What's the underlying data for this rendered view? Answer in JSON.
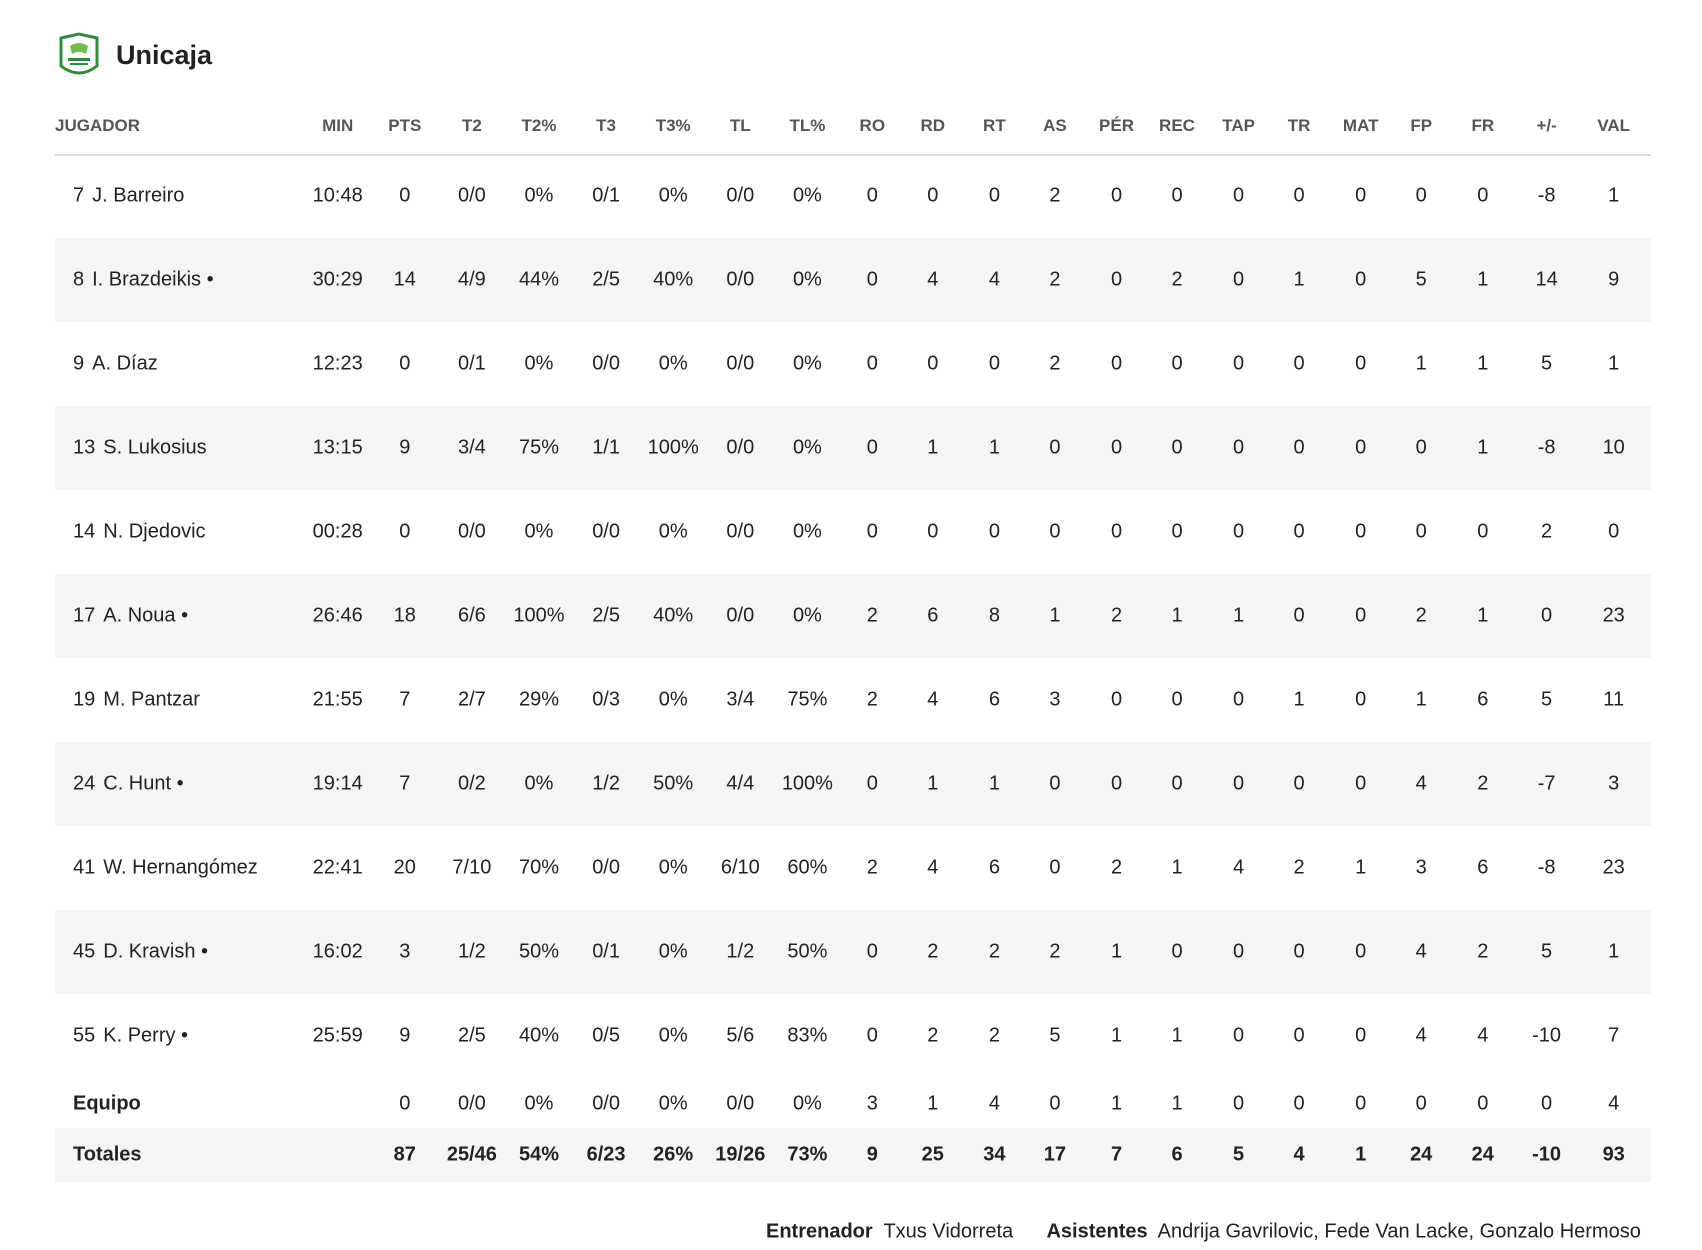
{
  "header": {
    "title": "Unicaja"
  },
  "table": {
    "columns": [
      "JUGADOR",
      "MIN",
      "PTS",
      "T2",
      "T2%",
      "T3",
      "T3%",
      "TL",
      "TL%",
      "RO",
      "RD",
      "RT",
      "AS",
      "PÉR",
      "REC",
      "TAP",
      "TR",
      "MAT",
      "FP",
      "FR",
      "+/-",
      "VAL"
    ],
    "rows": [
      {
        "number": "7",
        "name": "J. Barreiro",
        "stats": [
          "10:48",
          "0",
          "0/0",
          "0%",
          "0/1",
          "0%",
          "0/0",
          "0%",
          "0",
          "0",
          "0",
          "2",
          "0",
          "0",
          "0",
          "0",
          "0",
          "0",
          "0",
          "-8",
          "1"
        ]
      },
      {
        "number": "8",
        "name": "I. Brazdeikis •",
        "stats": [
          "30:29",
          "14",
          "4/9",
          "44%",
          "2/5",
          "40%",
          "0/0",
          "0%",
          "0",
          "4",
          "4",
          "2",
          "0",
          "2",
          "0",
          "1",
          "0",
          "5",
          "1",
          "14",
          "9"
        ]
      },
      {
        "number": "9",
        "name": "A. Díaz",
        "stats": [
          "12:23",
          "0",
          "0/1",
          "0%",
          "0/0",
          "0%",
          "0/0",
          "0%",
          "0",
          "0",
          "0",
          "2",
          "0",
          "0",
          "0",
          "0",
          "0",
          "1",
          "1",
          "5",
          "1"
        ]
      },
      {
        "number": "13",
        "name": "S. Lukosius",
        "stats": [
          "13:15",
          "9",
          "3/4",
          "75%",
          "1/1",
          "100%",
          "0/0",
          "0%",
          "0",
          "1",
          "1",
          "0",
          "0",
          "0",
          "0",
          "0",
          "0",
          "0",
          "1",
          "-8",
          "10"
        ]
      },
      {
        "number": "14",
        "name": "N. Djedovic",
        "stats": [
          "00:28",
          "0",
          "0/0",
          "0%",
          "0/0",
          "0%",
          "0/0",
          "0%",
          "0",
          "0",
          "0",
          "0",
          "0",
          "0",
          "0",
          "0",
          "0",
          "0",
          "0",
          "2",
          "0"
        ]
      },
      {
        "number": "17",
        "name": "A. Noua •",
        "stats": [
          "26:46",
          "18",
          "6/6",
          "100%",
          "2/5",
          "40%",
          "0/0",
          "0%",
          "2",
          "6",
          "8",
          "1",
          "2",
          "1",
          "1",
          "0",
          "0",
          "2",
          "1",
          "0",
          "23"
        ]
      },
      {
        "number": "19",
        "name": "M. Pantzar",
        "stats": [
          "21:55",
          "7",
          "2/7",
          "29%",
          "0/3",
          "0%",
          "3/4",
          "75%",
          "2",
          "4",
          "6",
          "3",
          "0",
          "0",
          "0",
          "1",
          "0",
          "1",
          "6",
          "5",
          "11"
        ]
      },
      {
        "number": "24",
        "name": "C. Hunt •",
        "stats": [
          "19:14",
          "7",
          "0/2",
          "0%",
          "1/2",
          "50%",
          "4/4",
          "100%",
          "0",
          "1",
          "1",
          "0",
          "0",
          "0",
          "0",
          "0",
          "0",
          "4",
          "2",
          "-7",
          "3"
        ]
      },
      {
        "number": "41",
        "name": "W. Hernangómez",
        "stats": [
          "22:41",
          "20",
          "7/10",
          "70%",
          "0/0",
          "0%",
          "6/10",
          "60%",
          "2",
          "4",
          "6",
          "0",
          "2",
          "1",
          "4",
          "2",
          "1",
          "3",
          "6",
          "-8",
          "23"
        ]
      },
      {
        "number": "45",
        "name": "D. Kravish •",
        "stats": [
          "16:02",
          "3",
          "1/2",
          "50%",
          "0/1",
          "0%",
          "1/2",
          "50%",
          "0",
          "2",
          "2",
          "2",
          "1",
          "0",
          "0",
          "0",
          "0",
          "4",
          "2",
          "5",
          "1"
        ]
      },
      {
        "number": "55",
        "name": "K. Perry •",
        "stats": [
          "25:59",
          "9",
          "2/5",
          "40%",
          "0/5",
          "0%",
          "5/6",
          "83%",
          "0",
          "2",
          "2",
          "5",
          "1",
          "1",
          "0",
          "0",
          "0",
          "4",
          "4",
          "-10",
          "7"
        ]
      }
    ],
    "team": {
      "label": "Equipo",
      "stats": [
        "0",
        "0/0",
        "0%",
        "0/0",
        "0%",
        "0/0",
        "0%",
        "3",
        "1",
        "4",
        "0",
        "1",
        "1",
        "0",
        "0",
        "0",
        "0",
        "0",
        "0",
        "4"
      ]
    },
    "totals": {
      "label": "Totales",
      "stats": [
        "87",
        "25/46",
        "54%",
        "6/23",
        "26%",
        "19/26",
        "73%",
        "9",
        "25",
        "34",
        "17",
        "7",
        "6",
        "5",
        "4",
        "1",
        "24",
        "24",
        "-10",
        "93"
      ]
    }
  },
  "footer": {
    "coach_label": "Entrenador",
    "coach": "Txus Vidorreta",
    "assistants_label": "Asistentes",
    "assistants": "Andrija Gavrilovic, Fede Van Lacke, Gonzalo Hermoso"
  }
}
